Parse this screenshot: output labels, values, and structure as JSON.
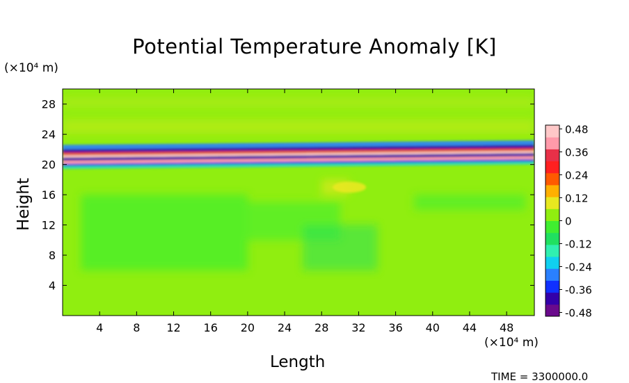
{
  "chart_data": {
    "type": "heatmap",
    "title": "Potential Temperature Anomaly [K]",
    "xlabel": "Length",
    "ylabel": "Height",
    "x_unit": "(×10⁴ m)",
    "y_unit": "(×10⁴ m)",
    "xlim": [
      0,
      51
    ],
    "ylim": [
      0,
      30
    ],
    "x_ticks": [
      4,
      8,
      12,
      16,
      20,
      24,
      28,
      32,
      36,
      40,
      44,
      48
    ],
    "y_ticks": [
      4,
      8,
      12,
      16,
      20,
      24,
      28
    ],
    "colorbar": {
      "range": [
        -0.5,
        0.5
      ],
      "labels": [
        "0.48",
        "0.36",
        "0.24",
        "0.12",
        "0",
        "-0.12",
        "-0.24",
        "-0.36",
        "-0.48"
      ],
      "label_values": [
        0.48,
        0.36,
        0.24,
        0.12,
        0,
        -0.12,
        -0.24,
        -0.36,
        -0.48
      ],
      "colors": [
        "#6a0a8c",
        "#3300aa",
        "#1030ff",
        "#2a80ff",
        "#10d0f0",
        "#30f0b0",
        "#20e060",
        "#40ee30",
        "#90ee10",
        "#e8e820",
        "#ffb000",
        "#ff5a00",
        "#ff2020",
        "#e83048",
        "#ff9aaa",
        "#ffc8c8"
      ]
    },
    "features": [
      {
        "name": "anomaly layer",
        "y_range": [
          19.5,
          22.5
        ],
        "min": -0.48,
        "max": 0.48
      },
      {
        "name": "warm patch",
        "x": 31,
        "y": 17,
        "value": 0.24
      }
    ],
    "grid": false
  },
  "time_label": "TIME = 3300000.0"
}
